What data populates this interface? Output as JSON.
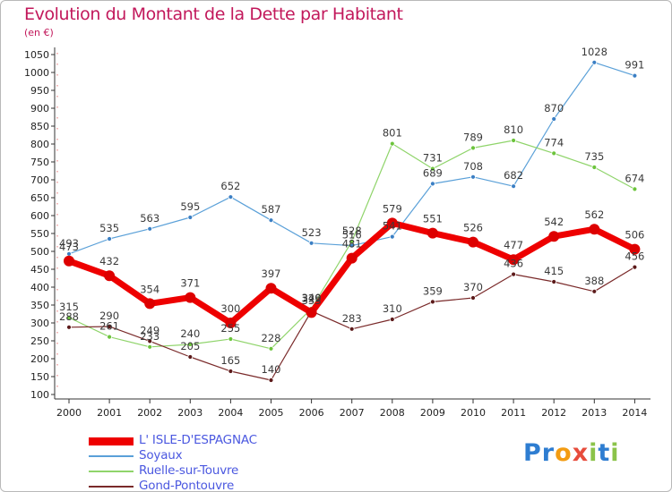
{
  "title": "Evolution du Montant de la Dette par Habitant",
  "subtitle": "(en €)",
  "logo": {
    "text": "Proxiti",
    "letters": [
      {
        "ch": "P",
        "color": "#2e7dd1"
      },
      {
        "ch": "r",
        "color": "#2e7dd1"
      },
      {
        "ch": "o",
        "color": "#f39c12"
      },
      {
        "ch": "x",
        "color": "#e74c3c"
      },
      {
        "ch": "i",
        "color": "#8bc34a"
      },
      {
        "ch": "t",
        "color": "#2e7dd1"
      },
      {
        "ch": "i",
        "color": "#8bc34a"
      }
    ]
  },
  "chart_data": {
    "type": "line",
    "x": [
      "2000",
      "2001",
      "2002",
      "2003",
      "2004",
      "2005",
      "2006",
      "2007",
      "2008",
      "2009",
      "2010",
      "2011",
      "2012",
      "2013",
      "2014"
    ],
    "ylim": [
      100,
      1050
    ],
    "yticks": [
      100,
      150,
      200,
      250,
      300,
      350,
      400,
      450,
      500,
      550,
      600,
      650,
      700,
      750,
      800,
      850,
      900,
      950,
      1000,
      1050
    ],
    "grid": false,
    "legend_position": "bottom-left",
    "series": [
      {
        "name": "Soyaux",
        "color": "#5aa0d8",
        "point_color": "#3b7fc4",
        "width": 1.2,
        "marker": 5,
        "values": [
          493,
          535,
          563,
          595,
          652,
          587,
          523,
          516,
          541,
          689,
          708,
          682,
          870,
          1028,
          991
        ]
      },
      {
        "name": "Ruelle-sur-Touvre",
        "color": "#8fd46a",
        "point_color": "#6cc43c",
        "width": 1.2,
        "marker": 5,
        "values": [
          315,
          261,
          233,
          240,
          255,
          228,
          340,
          528,
          801,
          731,
          789,
          810,
          774,
          735,
          674
        ]
      },
      {
        "name": "Gond-Pontouvre",
        "color": "#7a2a2a",
        "point_color": "#5c1a1a",
        "width": 1.2,
        "marker": 5,
        "values": [
          288,
          290,
          249,
          205,
          165,
          140,
          333,
          283,
          310,
          359,
          370,
          436,
          415,
          388,
          456
        ]
      },
      {
        "name": "L' ISLE-D'ESPAGNAC",
        "color": "#ee0000",
        "point_color": "#dd0000",
        "width": 7,
        "marker": 12,
        "values": [
          473,
          432,
          354,
          371,
          300,
          397,
          329,
          481,
          579,
          551,
          526,
          477,
          542,
          562,
          506
        ]
      }
    ],
    "legend_order": [
      "L' ISLE-D'ESPAGNAC",
      "Soyaux",
      "Ruelle-sur-Touvre",
      "Gond-Pontouvre"
    ]
  }
}
